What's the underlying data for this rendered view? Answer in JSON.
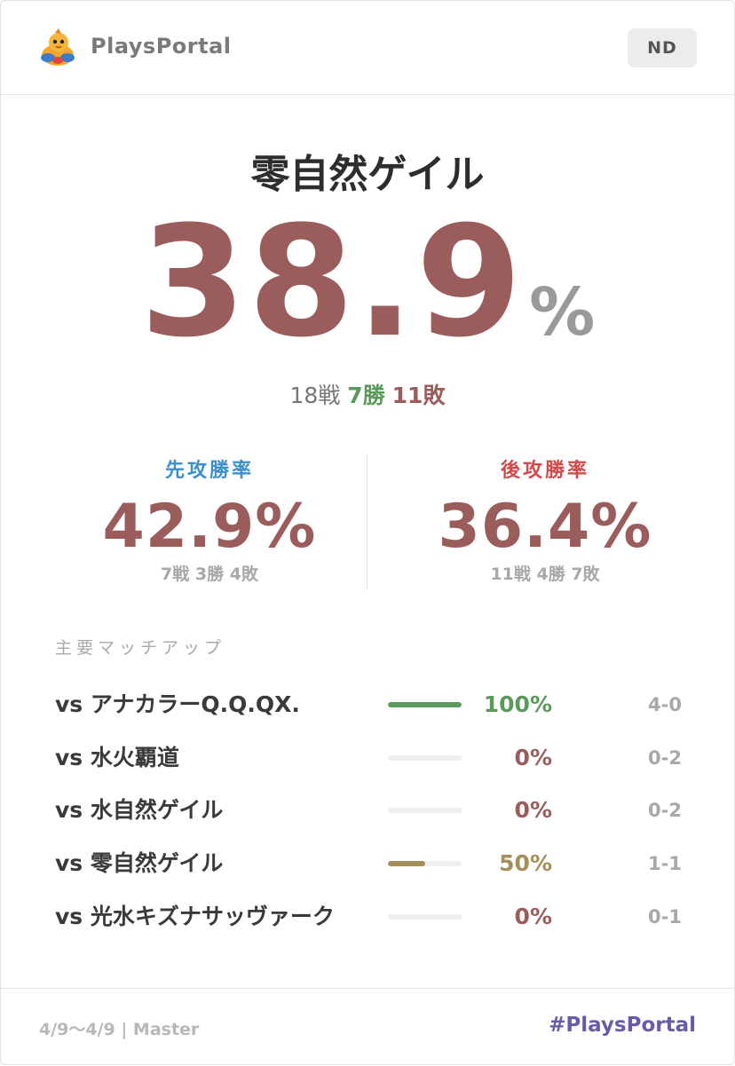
{
  "header": {
    "brand": "PlaysPortal",
    "badge": "ND"
  },
  "hero": {
    "deck_name": "零自然ゲイル",
    "winrate": "38.9",
    "percent_sign": "%",
    "record": {
      "total": "18戦",
      "wins": "7勝",
      "losses": "11敗"
    }
  },
  "split": {
    "first": {
      "label": "先攻勝率",
      "rate": "42.9%",
      "record": "7戦 3勝 4敗"
    },
    "second": {
      "label": "後攻勝率",
      "rate": "36.4%",
      "record": "11戦 4勝 7敗"
    }
  },
  "matchups": {
    "title": "主要マッチアップ",
    "rows": [
      {
        "name": "vs アナカラーQ.Q.QX.",
        "rate": "100%",
        "win_fraction": 1.0,
        "record": "4-0",
        "color": "#5a9a5a"
      },
      {
        "name": "vs 水火覇道",
        "rate": "0%",
        "win_fraction": 0.0,
        "record": "0-2",
        "color": "#9b5c5c"
      },
      {
        "name": "vs 水自然ゲイル",
        "rate": "0%",
        "win_fraction": 0.0,
        "record": "0-2",
        "color": "#9b5c5c"
      },
      {
        "name": "vs 零自然ゲイル",
        "rate": "50%",
        "win_fraction": 0.5,
        "record": "1-1",
        "color": "#a38f5a"
      },
      {
        "name": "vs 光水キズナサッヴァーク",
        "rate": "0%",
        "win_fraction": 0.0,
        "record": "0-1",
        "color": "#9b5c5c"
      }
    ]
  },
  "footer": {
    "period": "4/9〜4/9 | Master",
    "hashtag": "#PlaysPortal"
  },
  "colors": {
    "accent_red": "#9b5c5c",
    "win_green": "#5a9a5a",
    "even_gold": "#a38f5a",
    "first_blue": "#3d8fcc",
    "second_red": "#d24a4a",
    "hashtag_purple": "#6a5aa8"
  },
  "icons": {
    "logo": "duck-mascot-icon"
  }
}
